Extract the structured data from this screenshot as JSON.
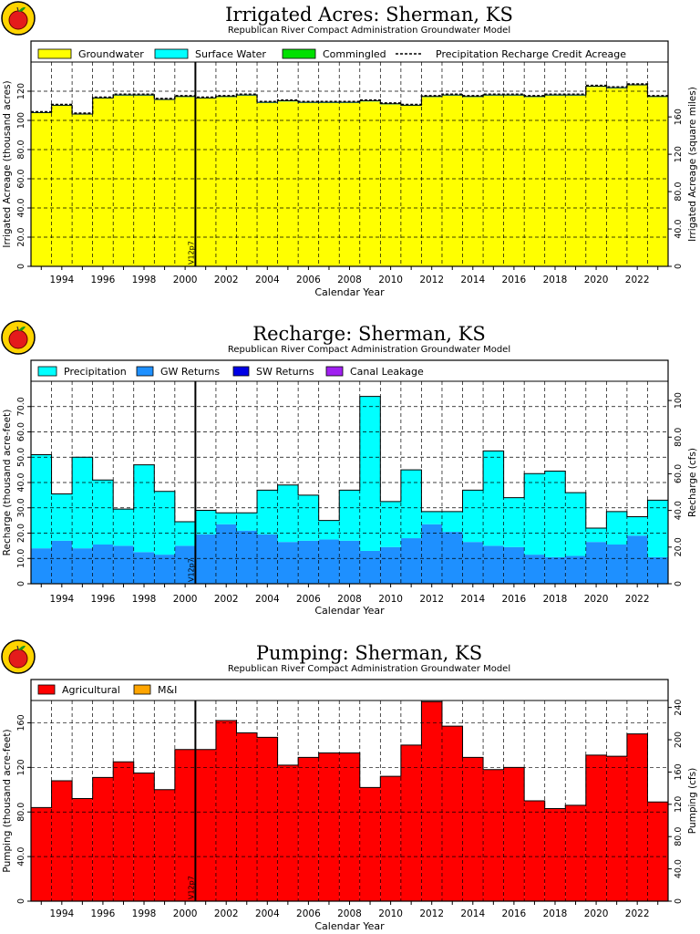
{
  "chart_data": [
    {
      "type": "bar",
      "stacked": true,
      "title": "Irrigated Acres: Sherman, KS",
      "subtitle": "Republican River Compact Administration Groundwater Model",
      "xlabel": "Calendar Year",
      "ylabel": "Irrigated Acreage (thousand acres)",
      "ylabel_right": "Irrigated Acreage (square miles)",
      "marker_label": "V12p7",
      "marker_x": 2000.5,
      "xlim": [
        1992.5,
        2023.5
      ],
      "ylim": [
        0,
        140
      ],
      "y_ticks": [
        0,
        20,
        40,
        60,
        80,
        100,
        120
      ],
      "y_tick_labels": [
        "0",
        "20.0",
        "40.0",
        "60.0",
        "80.0",
        "100",
        "120"
      ],
      "right_ticks": [
        0,
        40,
        80,
        120,
        160
      ],
      "right_tick_labels": [
        "0",
        "40.0",
        "80.0",
        "120",
        "160"
      ],
      "right_scale": 1.5625,
      "x_ticks": [
        1994,
        1996,
        1998,
        2000,
        2002,
        2004,
        2006,
        2008,
        2010,
        2012,
        2014,
        2016,
        2018,
        2020,
        2022
      ],
      "x": [
        1993,
        1994,
        1995,
        1996,
        1997,
        1998,
        1999,
        2000,
        2001,
        2002,
        2003,
        2004,
        2005,
        2006,
        2007,
        2008,
        2009,
        2010,
        2011,
        2012,
        2013,
        2014,
        2015,
        2016,
        2017,
        2018,
        2019,
        2020,
        2021,
        2022,
        2023
      ],
      "grid": true,
      "legend_position": "top",
      "series": [
        {
          "name": "Groundwater",
          "color": "#ffff00",
          "values": [
            105,
            110,
            104,
            115,
            117,
            117,
            114,
            116,
            115,
            116,
            117,
            112,
            113,
            112,
            112,
            112,
            113,
            111,
            110,
            116,
            117,
            116,
            117,
            117,
            116,
            117,
            117,
            123,
            122,
            124,
            116
          ]
        },
        {
          "name": "Surface Water",
          "color": "#00ffff",
          "values": [
            0.4,
            0.4,
            0.4,
            0.4,
            0.4,
            0.4,
            0.4,
            0.4,
            0.4,
            0.4,
            0.4,
            0.4,
            0.4,
            0.4,
            0.4,
            0.4,
            0.4,
            0.4,
            0.4,
            0.4,
            0.4,
            0.4,
            0.4,
            0.4,
            0.4,
            0.4,
            0.4,
            0.4,
            0.4,
            0.4,
            0.4
          ]
        },
        {
          "name": "Commingled",
          "color": "#00e000",
          "values": [
            0,
            0,
            0,
            0,
            0,
            0,
            0,
            0,
            0,
            0,
            0,
            0,
            0,
            0,
            0,
            0,
            0,
            0,
            0,
            0,
            0,
            0,
            0,
            0,
            0,
            0,
            0,
            0,
            0,
            0,
            0
          ]
        }
      ],
      "line_series": {
        "name": "Precipitation Recharge Credit Acreage",
        "values": [
          106,
          111,
          105,
          116,
          118,
          118,
          115,
          117,
          116,
          117,
          118,
          113,
          114,
          113,
          113,
          113,
          114,
          112,
          111,
          117,
          118,
          117,
          118,
          118,
          117,
          118,
          118,
          124,
          123,
          125,
          117
        ]
      }
    },
    {
      "type": "bar",
      "stacked": true,
      "title": "Recharge: Sherman, KS",
      "subtitle": "Republican River Compact Administration Groundwater Model",
      "xlabel": "Calendar Year",
      "ylabel": "Recharge (thousand acre-feet)",
      "ylabel_right": "Recharge (cfs)",
      "marker_label": "V12p7",
      "marker_x": 2000.5,
      "xlim": [
        1992.5,
        2023.5
      ],
      "ylim": [
        0,
        80
      ],
      "y_ticks": [
        0,
        10,
        20,
        30,
        40,
        50,
        60,
        70
      ],
      "y_tick_labels": [
        "0",
        "10.0",
        "20.0",
        "30.0",
        "40.0",
        "50.0",
        "60.0",
        "70.0"
      ],
      "right_ticks": [
        0,
        20,
        40,
        60,
        80,
        100
      ],
      "right_tick_labels": [
        "0",
        "20.0",
        "40.0",
        "60.0",
        "80.0",
        "100"
      ],
      "right_scale": 1.3812,
      "x_ticks": [
        1994,
        1996,
        1998,
        2000,
        2002,
        2004,
        2006,
        2008,
        2010,
        2012,
        2014,
        2016,
        2018,
        2020,
        2022
      ],
      "x": [
        1993,
        1994,
        1995,
        1996,
        1997,
        1998,
        1999,
        2000,
        2001,
        2002,
        2003,
        2004,
        2005,
        2006,
        2007,
        2008,
        2009,
        2010,
        2011,
        2012,
        2013,
        2014,
        2015,
        2016,
        2017,
        2018,
        2019,
        2020,
        2021,
        2022,
        2023
      ],
      "grid": true,
      "legend_position": "top",
      "series": [
        {
          "name": "GW Returns",
          "color": "#1e90ff",
          "values": [
            14,
            17,
            14,
            15.5,
            15,
            12.5,
            11.5,
            15,
            19.5,
            23.5,
            21,
            19.5,
            16.5,
            17,
            17.5,
            17,
            13,
            14.5,
            18,
            23.5,
            20.5,
            16.5,
            15,
            14.5,
            11.5,
            10.5,
            11,
            16.5,
            15.5,
            19,
            10.5
          ]
        },
        {
          "name": "Precipitation",
          "color": "#00ffff",
          "values": [
            37,
            18.5,
            36,
            25.5,
            14.5,
            34.5,
            25,
            9.5,
            9.5,
            4.5,
            7,
            17.5,
            22.5,
            18,
            7.5,
            20,
            61,
            18,
            27,
            5,
            8,
            20.5,
            37.5,
            19.5,
            32,
            34,
            25,
            5.5,
            13,
            7.5,
            22.5
          ]
        },
        {
          "name": "SW Returns",
          "color": "#0000e6",
          "values": [
            0,
            0,
            0,
            0,
            0,
            0,
            0,
            0,
            0,
            0,
            0,
            0,
            0,
            0,
            0,
            0,
            0,
            0,
            0,
            0,
            0,
            0,
            0,
            0,
            0,
            0,
            0,
            0,
            0,
            0,
            0
          ]
        },
        {
          "name": "Canal Leakage",
          "color": "#a020f0",
          "values": [
            0,
            0,
            0,
            0,
            0,
            0,
            0,
            0,
            0,
            0,
            0,
            0,
            0,
            0,
            0,
            0,
            0,
            0,
            0,
            0,
            0,
            0,
            0,
            0,
            0,
            0,
            0,
            0,
            0,
            0,
            0
          ]
        }
      ],
      "legend_order": [
        "Precipitation",
        "GW Returns",
        "SW Returns",
        "Canal Leakage"
      ]
    },
    {
      "type": "bar",
      "stacked": true,
      "title": "Pumping: Sherman, KS",
      "subtitle": "Republican River Compact Administration Groundwater Model",
      "xlabel": "Calendar Year",
      "ylabel": "Pumping (thousand acre-feet)",
      "ylabel_right": "Pumping (cfs)",
      "marker_label": "V12p7",
      "marker_x": 2000.5,
      "xlim": [
        1992.5,
        2023.5
      ],
      "ylim": [
        0,
        180
      ],
      "y_ticks": [
        0,
        40,
        80,
        120,
        160
      ],
      "y_tick_labels": [
        "0",
        "40.0",
        "80.0",
        "120",
        "160"
      ],
      "right_ticks": [
        0,
        40,
        80,
        120,
        160,
        200,
        240
      ],
      "right_tick_labels": [
        "0",
        "40.0",
        "80.0",
        "120",
        "160",
        "200",
        "240"
      ],
      "right_scale": 1.3812,
      "x_ticks": [
        1994,
        1996,
        1998,
        2000,
        2002,
        2004,
        2006,
        2008,
        2010,
        2012,
        2014,
        2016,
        2018,
        2020,
        2022
      ],
      "x": [
        1993,
        1994,
        1995,
        1996,
        1997,
        1998,
        1999,
        2000,
        2001,
        2002,
        2003,
        2004,
        2005,
        2006,
        2007,
        2008,
        2009,
        2010,
        2011,
        2012,
        2013,
        2014,
        2015,
        2016,
        2017,
        2018,
        2019,
        2020,
        2021,
        2022,
        2023
      ],
      "grid": true,
      "legend_position": "top",
      "series": [
        {
          "name": "Agricultural",
          "color": "#ff0000",
          "values": [
            84,
            108,
            92,
            111,
            125,
            115,
            100,
            136,
            136,
            162,
            151,
            147,
            122,
            129,
            133,
            133,
            102,
            112,
            140,
            179,
            157,
            129,
            118,
            120,
            90,
            83,
            86,
            131,
            130,
            150,
            89
          ]
        },
        {
          "name": "M&I",
          "color": "#ffa500",
          "values": [
            0,
            0,
            0,
            0,
            0,
            0,
            0,
            0,
            0,
            0,
            0,
            0,
            0,
            0,
            0,
            0,
            0,
            0,
            0,
            0,
            0,
            0,
            0,
            0,
            0,
            0,
            0,
            0,
            0,
            0,
            0
          ]
        }
      ]
    }
  ]
}
